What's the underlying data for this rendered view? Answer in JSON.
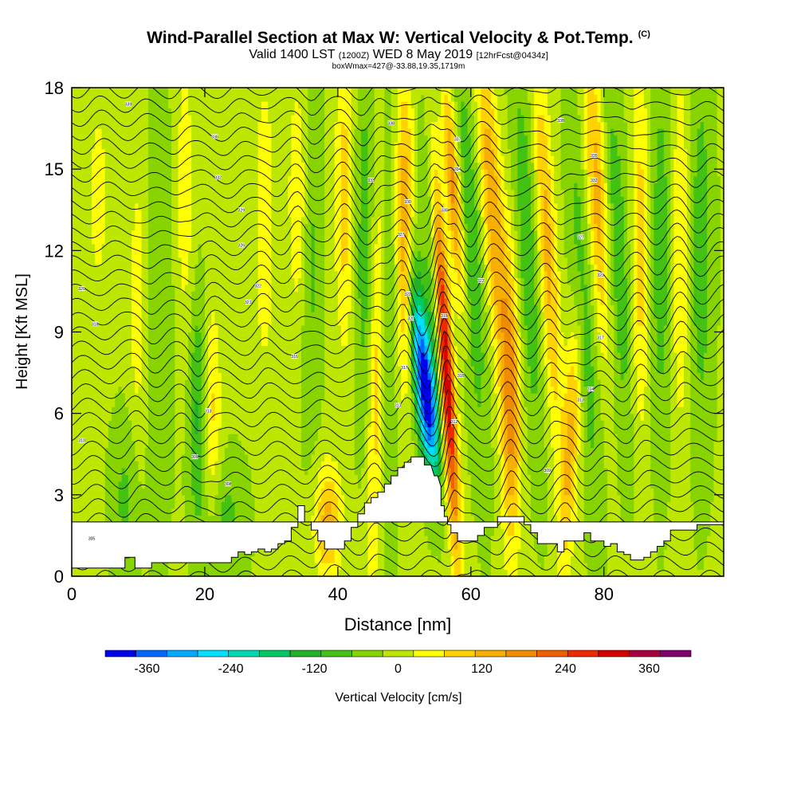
{
  "colors": {
    "background": "#ffffff",
    "terrain": "#ffffff",
    "isentrope": "#000000",
    "scale": [
      "#0000ee",
      "#0066ff",
      "#00aaff",
      "#00e0ff",
      "#00d8b0",
      "#00c864",
      "#22b22a",
      "#44c214",
      "#88d400",
      "#bde600",
      "#ffff00",
      "#ffd200",
      "#f8b000",
      "#f08c00",
      "#f06000",
      "#f02800",
      "#d20000",
      "#a80040",
      "#80006e"
    ]
  },
  "chart_data": {
    "type": "heatmap",
    "title": "Wind-Parallel Section at Max W: Vertical Velocity & Pot.Temp.",
    "title_mark": "(C)",
    "subtitle_main": "Valid 1400 LST",
    "subtitle_utc": "(1200Z)",
    "subtitle_date": "WED 8 May 2019",
    "subtitle_fcst": "[12hrFcst@0434z]",
    "subsubtitle": "boxWmax=427@-33.88,19.35,1719m",
    "xlabel": "Distance [nm]",
    "ylabel": "Height [Kft MSL]",
    "xlim": [
      0,
      98
    ],
    "ylim": [
      0,
      18
    ],
    "xticks": [
      0,
      20,
      40,
      60,
      80
    ],
    "yticks": [
      0,
      3,
      6,
      9,
      12,
      15,
      18
    ],
    "colorbar": {
      "label": "Vertical Velocity [cm/s]",
      "min": -420,
      "max": 420,
      "step": 45,
      "ticks": [
        -360,
        -240,
        -120,
        0,
        120,
        240,
        360
      ]
    },
    "field": {
      "baseline": -10,
      "updrafts": [
        {
          "x": 56.0,
          "y": 8.5,
          "sx": 0.8,
          "sy": 5.0,
          "amp": 400,
          "tilt": -0.25
        },
        {
          "x": 57.5,
          "y": 14.0,
          "sx": 0.8,
          "sy": 3.0,
          "amp": 200,
          "tilt": -0.3
        },
        {
          "x": 50.0,
          "y": 13.0,
          "sx": 1.0,
          "sy": 4.0,
          "amp": 170,
          "tilt": 0
        },
        {
          "x": 46.0,
          "y": 8.0,
          "sx": 1.0,
          "sy": 6.0,
          "amp": 120,
          "tilt": 0.1
        },
        {
          "x": 63.5,
          "y": 13.0,
          "sx": 1.2,
          "sy": 5.0,
          "amp": 170,
          "tilt": -0.3
        },
        {
          "x": 66.0,
          "y": 6.0,
          "sx": 1.0,
          "sy": 4.0,
          "amp": 150,
          "tilt": 0
        },
        {
          "x": 71.5,
          "y": 12.0,
          "sx": 1.0,
          "sy": 5.0,
          "amp": 150,
          "tilt": -0.2
        },
        {
          "x": 75.0,
          "y": 5.0,
          "sx": 1.0,
          "sy": 3.5,
          "amp": 140,
          "tilt": 0.2
        },
        {
          "x": 79.0,
          "y": 14.0,
          "sx": 1.2,
          "sy": 4.0,
          "amp": 160,
          "tilt": -0.2
        },
        {
          "x": 85.5,
          "y": 12.0,
          "sx": 1.0,
          "sy": 5.0,
          "amp": 110,
          "tilt": 0
        },
        {
          "x": 91.5,
          "y": 12.0,
          "sx": 1.0,
          "sy": 5.0,
          "amp": 90,
          "tilt": 0
        },
        {
          "x": 38.5,
          "y": 2.0,
          "sx": 1.5,
          "sy": 1.5,
          "amp": 150,
          "tilt": 0
        },
        {
          "x": 41.0,
          "y": 14.0,
          "sx": 1.0,
          "sy": 4.0,
          "amp": 110,
          "tilt": 0
        },
        {
          "x": 34.0,
          "y": 14.0,
          "sx": 1.0,
          "sy": 3.0,
          "amp": 90,
          "tilt": 0
        },
        {
          "x": 29.0,
          "y": 13.0,
          "sx": 1.0,
          "sy": 4.0,
          "amp": 80,
          "tilt": 0
        },
        {
          "x": 21.0,
          "y": 6.0,
          "sx": 1.0,
          "sy": 3.0,
          "amp": 100,
          "tilt": 0
        },
        {
          "x": 17.0,
          "y": 14.0,
          "sx": 1.0,
          "sy": 4.0,
          "amp": 70,
          "tilt": 0
        },
        {
          "x": 10.0,
          "y": 10.0,
          "sx": 1.0,
          "sy": 4.0,
          "amp": 70,
          "tilt": 0
        },
        {
          "x": 4.0,
          "y": 14.0,
          "sx": 1.5,
          "sy": 4.0,
          "amp": 50,
          "tilt": 0
        }
      ],
      "downdrafts": [
        {
          "x": 53.5,
          "y": 6.5,
          "sx": 1.0,
          "sy": 2.0,
          "amp": 380,
          "tilt": -0.3
        },
        {
          "x": 52.0,
          "y": 9.0,
          "sx": 0.9,
          "sy": 2.5,
          "amp": 150,
          "tilt": -0.2
        },
        {
          "x": 54.5,
          "y": 12.0,
          "sx": 0.9,
          "sy": 4.0,
          "amp": 150,
          "tilt": -0.2
        },
        {
          "x": 47.5,
          "y": 11.0,
          "sx": 1.0,
          "sy": 6.0,
          "amp": 80,
          "tilt": 0
        },
        {
          "x": 60.0,
          "y": 12.0,
          "sx": 1.2,
          "sy": 5.0,
          "amp": 100,
          "tilt": -0.2
        },
        {
          "x": 68.5,
          "y": 12.0,
          "sx": 1.2,
          "sy": 5.0,
          "amp": 90,
          "tilt": -0.2
        },
        {
          "x": 77.0,
          "y": 10.0,
          "sx": 1.2,
          "sy": 5.0,
          "amp": 90,
          "tilt": -0.2
        },
        {
          "x": 82.0,
          "y": 12.0,
          "sx": 1.2,
          "sy": 5.0,
          "amp": 90,
          "tilt": -0.2
        },
        {
          "x": 88.5,
          "y": 12.0,
          "sx": 1.2,
          "sy": 5.0,
          "amp": 80,
          "tilt": 0
        },
        {
          "x": 94.5,
          "y": 12.0,
          "sx": 1.2,
          "sy": 5.0,
          "amp": 80,
          "tilt": 0
        },
        {
          "x": 19.0,
          "y": 6.0,
          "sx": 1.0,
          "sy": 3.0,
          "amp": 110,
          "tilt": 0
        },
        {
          "x": 23.0,
          "y": 2.0,
          "sx": 2.0,
          "sy": 1.5,
          "amp": 70,
          "tilt": 0
        },
        {
          "x": 44.0,
          "y": 12.0,
          "sx": 1.0,
          "sy": 5.0,
          "amp": 80,
          "tilt": 0
        },
        {
          "x": 36.0,
          "y": 12.0,
          "sx": 1.0,
          "sy": 5.0,
          "amp": 60,
          "tilt": 0
        },
        {
          "x": 8.0,
          "y": 3.0,
          "sx": 1.5,
          "sy": 2.0,
          "amp": 60,
          "tilt": 0
        },
        {
          "x": 13.0,
          "y": 10.0,
          "sx": 1.5,
          "sy": 5.0,
          "amp": 50,
          "tilt": 0
        }
      ]
    },
    "terrain": {
      "x": [
        0,
        8,
        8,
        9.5,
        9.5,
        12,
        12,
        17,
        20,
        24,
        24,
        25,
        25,
        26,
        26,
        27,
        27,
        28,
        28,
        29,
        29,
        30,
        30,
        31,
        31,
        32,
        32,
        33,
        33,
        34,
        34,
        35,
        35,
        36,
        36,
        37,
        37,
        38,
        38,
        39,
        40,
        41,
        41,
        42,
        42,
        43,
        43,
        44,
        44,
        45,
        45,
        46,
        46,
        47,
        47,
        48,
        48,
        49,
        49,
        50,
        50,
        51,
        51,
        53,
        53,
        54,
        54.5,
        55,
        55.5,
        55.5,
        56,
        56,
        56.5,
        56.5,
        57,
        57,
        58,
        58,
        61,
        61,
        62,
        62,
        64,
        64,
        68,
        68,
        69,
        69,
        70,
        70,
        73,
        73,
        74,
        74,
        77,
        77,
        78,
        78,
        80,
        80,
        81,
        81,
        82,
        82,
        83,
        83,
        84,
        84,
        85,
        85,
        86,
        86,
        87,
        87,
        88,
        88,
        89,
        89,
        90,
        90,
        94,
        94,
        98,
        98,
        0
      ],
      "y": [
        0.3,
        0.3,
        0.7,
        0.7,
        0.3,
        0.3,
        0.5,
        0.5,
        0.5,
        0.5,
        0.7,
        0.7,
        0.9,
        0.9,
        0.8,
        0.8,
        0.9,
        0.9,
        1.0,
        1.0,
        0.9,
        0.9,
        1.0,
        1.0,
        1.2,
        1.2,
        1.3,
        1.3,
        1.8,
        1.8,
        2.6,
        2.6,
        2.0,
        2.0,
        1.7,
        1.7,
        1.3,
        1.3,
        1.0,
        1.0,
        1.0,
        1.0,
        1.3,
        1.3,
        1.8,
        1.8,
        2.3,
        2.3,
        2.7,
        2.7,
        2.9,
        2.9,
        3.1,
        3.1,
        3.4,
        3.4,
        3.7,
        3.7,
        4.0,
        4.0,
        4.2,
        4.2,
        4.4,
        4.4,
        4.1,
        4.1,
        3.7,
        3.7,
        3.3,
        2.6,
        2.6,
        2.2,
        2.2,
        1.9,
        1.9,
        1.6,
        1.6,
        1.3,
        1.3,
        1.5,
        1.5,
        1.8,
        1.8,
        2.2,
        2.2,
        1.9,
        1.9,
        1.6,
        1.6,
        1.2,
        1.2,
        0.9,
        0.9,
        1.3,
        1.3,
        1.6,
        1.6,
        1.3,
        1.3,
        1.1,
        1.1,
        1.2,
        1.2,
        0.9,
        0.9,
        0.8,
        0.8,
        0.6,
        0.6,
        0.6,
        0.6,
        0.7,
        0.7,
        0.9,
        0.9,
        1.1,
        1.1,
        1.3,
        1.3,
        1.7,
        1.7,
        1.9,
        1.9,
        2.0,
        2.0,
        0,
        0
      ]
    },
    "isentrope_levels": [
      306,
      307,
      308,
      309,
      310,
      311,
      312,
      313,
      314,
      315,
      316,
      317,
      318,
      319,
      320,
      321,
      322,
      323,
      324,
      325,
      326,
      327,
      328,
      329,
      330,
      331,
      332,
      333,
      334,
      335,
      336,
      337,
      338,
      339,
      340,
      341,
      342,
      343
    ],
    "isentrope_base": 306,
    "isentrope_lapse": 1.9,
    "isentrope_labels": [
      {
        "x": 1.5,
        "y": 5.0,
        "text": "310"
      },
      {
        "x": 3.5,
        "y": 9.3,
        "text": "318"
      },
      {
        "x": 1.5,
        "y": 10.6,
        "text": "320"
      },
      {
        "x": 8.5,
        "y": 17.4,
        "text": "339"
      },
      {
        "x": 20.5,
        "y": 6.1,
        "text": "313"
      },
      {
        "x": 18.5,
        "y": 4.4,
        "text": "309"
      },
      {
        "x": 23.5,
        "y": 3.4,
        "text": "308"
      },
      {
        "x": 21.5,
        "y": 16.2,
        "text": "336"
      },
      {
        "x": 22.0,
        "y": 14.7,
        "text": "332"
      },
      {
        "x": 25.5,
        "y": 13.5,
        "text": "329"
      },
      {
        "x": 25.5,
        "y": 12.2,
        "text": "326"
      },
      {
        "x": 26.5,
        "y": 10.1,
        "text": "321"
      },
      {
        "x": 28.0,
        "y": 10.7,
        "text": "322"
      },
      {
        "x": 33.5,
        "y": 8.1,
        "text": "316"
      },
      {
        "x": 45.0,
        "y": 14.6,
        "text": "333"
      },
      {
        "x": 48.0,
        "y": 16.7,
        "text": "338"
      },
      {
        "x": 49.5,
        "y": 12.6,
        "text": "327"
      },
      {
        "x": 50.5,
        "y": 13.8,
        "text": "330"
      },
      {
        "x": 50.5,
        "y": 10.4,
        "text": "322"
      },
      {
        "x": 51.0,
        "y": 9.5,
        "text": "320"
      },
      {
        "x": 50.0,
        "y": 7.7,
        "text": "317"
      },
      {
        "x": 49.0,
        "y": 6.3,
        "text": "313"
      },
      {
        "x": 56.0,
        "y": 13.5,
        "text": "330"
      },
      {
        "x": 56.0,
        "y": 9.6,
        "text": "319"
      },
      {
        "x": 58.0,
        "y": 16.1,
        "text": "337"
      },
      {
        "x": 58.0,
        "y": 15.0,
        "text": "334"
      },
      {
        "x": 58.5,
        "y": 7.4,
        "text": "316"
      },
      {
        "x": 57.5,
        "y": 5.7,
        "text": "312"
      },
      {
        "x": 61.5,
        "y": 10.9,
        "text": "322"
      },
      {
        "x": 73.5,
        "y": 16.8,
        "text": "338"
      },
      {
        "x": 78.5,
        "y": 15.5,
        "text": "335"
      },
      {
        "x": 78.5,
        "y": 14.6,
        "text": "332"
      },
      {
        "x": 76.5,
        "y": 12.5,
        "text": "327"
      },
      {
        "x": 79.5,
        "y": 11.1,
        "text": "323"
      },
      {
        "x": 79.5,
        "y": 8.8,
        "text": "317"
      },
      {
        "x": 78.0,
        "y": 6.9,
        "text": "314"
      },
      {
        "x": 76.5,
        "y": 6.5,
        "text": "313"
      },
      {
        "x": 71.5,
        "y": 3.9,
        "text": "309"
      },
      {
        "x": 3.0,
        "y": 1.4,
        "text": "305"
      }
    ]
  }
}
